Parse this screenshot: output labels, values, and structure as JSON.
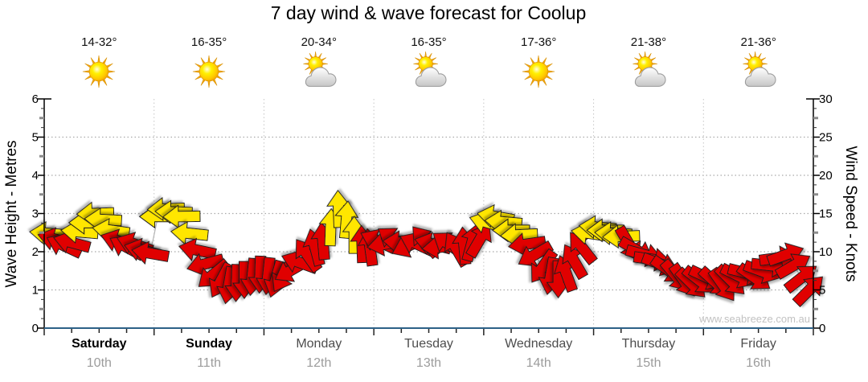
{
  "title": "7 day wind & wave forecast for Coolup",
  "watermark": "www.seabreeze.com.au",
  "chart_data": {
    "type": "line",
    "subtype": "wind-arrow-forecast",
    "title": "7 day wind & wave forecast for Coolup",
    "left_axis": {
      "label": "Wave Height - Metres",
      "min": 0,
      "max": 6,
      "major_tick": 1,
      "gridlines": [
        1,
        2,
        3,
        4,
        5
      ]
    },
    "right_axis": {
      "label": "Wind Speed - Knots",
      "min": 0,
      "max": 30,
      "major_tick": 5
    },
    "legend": "none",
    "grid": "dotted",
    "dir_note": "wind arrow rotation: degrees clockwise, 0 = arrow points right",
    "colors": {
      "arrow_strong": "#ffe606",
      "arrow_light": "#e00000",
      "arrow_outline": "#1b1b1b",
      "strong_threshold_knots": 12,
      "bottom_axis": "#2d6187",
      "gridline": "#a9a9a9",
      "day_gridline": "#c6c6c6",
      "trend_line": "#b4b4b4"
    },
    "days": [
      {
        "label": "Saturday",
        "date": "10th",
        "temp_range": "14-32°",
        "icon": "sun",
        "weekend": true,
        "wind": [
          [
            12.4,
            185
          ],
          [
            11.6,
            195
          ],
          [
            10.8,
            205
          ],
          [
            11.2,
            195
          ],
          [
            12.6,
            185
          ],
          [
            13.8,
            180
          ],
          [
            15.0,
            178
          ],
          [
            14.2,
            183
          ],
          [
            12.8,
            188
          ],
          [
            11.4,
            198
          ],
          [
            10.6,
            208
          ],
          [
            11.0,
            200
          ],
          [
            10.2,
            195
          ],
          [
            9.8,
            190
          ]
        ]
      },
      {
        "label": "Sunday",
        "date": "11th",
        "temp_range": "16-35°",
        "icon": "sun",
        "weekend": true,
        "wind": [
          [
            14.6,
            180
          ],
          [
            15.6,
            178
          ],
          [
            15.2,
            182
          ],
          [
            14.6,
            179
          ],
          [
            12.4,
            186
          ],
          [
            10.2,
            192
          ],
          [
            8.4,
            165
          ],
          [
            7.0,
            140
          ],
          [
            6.2,
            118
          ],
          [
            5.6,
            100
          ],
          [
            5.9,
            92
          ],
          [
            6.3,
            90
          ],
          [
            6.7,
            96
          ],
          [
            7.0,
            92
          ]
        ]
      },
      {
        "label": "Monday",
        "date": "12th",
        "temp_range": "20-34°",
        "icon": "sun-cloud",
        "weekend": false,
        "wind": [
          [
            6.8,
            96
          ],
          [
            6.4,
            106
          ],
          [
            6.9,
            120
          ],
          [
            7.6,
            150
          ],
          [
            8.6,
            200
          ],
          [
            9.6,
            235
          ],
          [
            10.6,
            255
          ],
          [
            11.4,
            265
          ],
          [
            13.2,
            272
          ],
          [
            15.6,
            268
          ],
          [
            14.2,
            275
          ],
          [
            12.2,
            270
          ],
          [
            11.0,
            268
          ],
          [
            10.6,
            262
          ]
        ]
      },
      {
        "label": "Tuesday",
        "date": "13th",
        "temp_range": "16-35°",
        "icon": "sun-cloud",
        "weekend": false,
        "wind": [
          [
            11.4,
            205
          ],
          [
            11.0,
            170
          ],
          [
            11.6,
            215
          ],
          [
            11.2,
            185
          ],
          [
            10.8,
            155
          ],
          [
            11.0,
            205
          ],
          [
            11.4,
            230
          ],
          [
            11.0,
            195
          ],
          [
            10.6,
            175
          ],
          [
            11.0,
            215
          ],
          [
            10.4,
            240
          ],
          [
            10.8,
            265
          ],
          [
            11.2,
            285
          ],
          [
            11.6,
            300
          ]
        ]
      },
      {
        "label": "Wednesday",
        "date": "14th",
        "temp_range": "17-36°",
        "icon": "sun",
        "weekend": false,
        "wind": [
          [
            13.8,
            196
          ],
          [
            14.6,
            190
          ],
          [
            13.9,
            185
          ],
          [
            12.8,
            180
          ],
          [
            12.2,
            177
          ],
          [
            11.0,
            172
          ],
          [
            9.6,
            150
          ],
          [
            8.0,
            125
          ],
          [
            6.8,
            100
          ],
          [
            6.4,
            90
          ],
          [
            7.2,
            250
          ],
          [
            8.8,
            240
          ],
          [
            10.6,
            232
          ],
          [
            12.4,
            188
          ]
        ]
      },
      {
        "label": "Thursday",
        "date": "15th",
        "temp_range": "21-38°",
        "icon": "sun-cloud",
        "weekend": false,
        "wind": [
          [
            13.2,
            185
          ],
          [
            12.8,
            180
          ],
          [
            12.4,
            183
          ],
          [
            12.0,
            178
          ],
          [
            11.0,
            60
          ],
          [
            10.2,
            30
          ],
          [
            9.6,
            15
          ],
          [
            9.0,
            8
          ],
          [
            8.4,
            20
          ],
          [
            7.6,
            35
          ],
          [
            6.8,
            50
          ],
          [
            6.2,
            55
          ],
          [
            5.8,
            45
          ],
          [
            6.2,
            38
          ]
        ]
      },
      {
        "label": "Friday",
        "date": "16th",
        "temp_range": "21-36°",
        "icon": "sun-cloud",
        "weekend": false,
        "wind": [
          [
            6.6,
            25
          ],
          [
            6.0,
            42
          ],
          [
            5.6,
            55
          ],
          [
            6.2,
            45
          ],
          [
            6.8,
            26
          ],
          [
            7.2,
            14
          ],
          [
            6.6,
            35
          ],
          [
            7.4,
            20
          ],
          [
            8.2,
            6
          ],
          [
            9.2,
            352
          ],
          [
            9.6,
            340
          ],
          [
            8.2,
            330
          ],
          [
            6.6,
            322
          ],
          [
            5.0,
            315
          ]
        ]
      }
    ]
  }
}
